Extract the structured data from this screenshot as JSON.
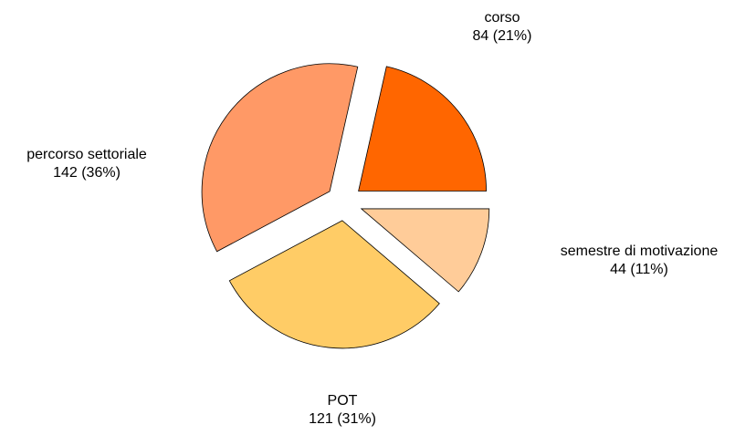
{
  "chart_data": {
    "type": "pie",
    "categories": [
      "corso",
      "percorso settoriale",
      "POT",
      "semestre di motivazione"
    ],
    "values": [
      84,
      142,
      121,
      44
    ],
    "value_labels": [
      "84 (21%)",
      "142 (36%)",
      "121 (31%)",
      "44 (11%)"
    ],
    "colors": [
      "#FF6600",
      "#FF9966",
      "#FFCC66",
      "#FFCC99"
    ]
  }
}
